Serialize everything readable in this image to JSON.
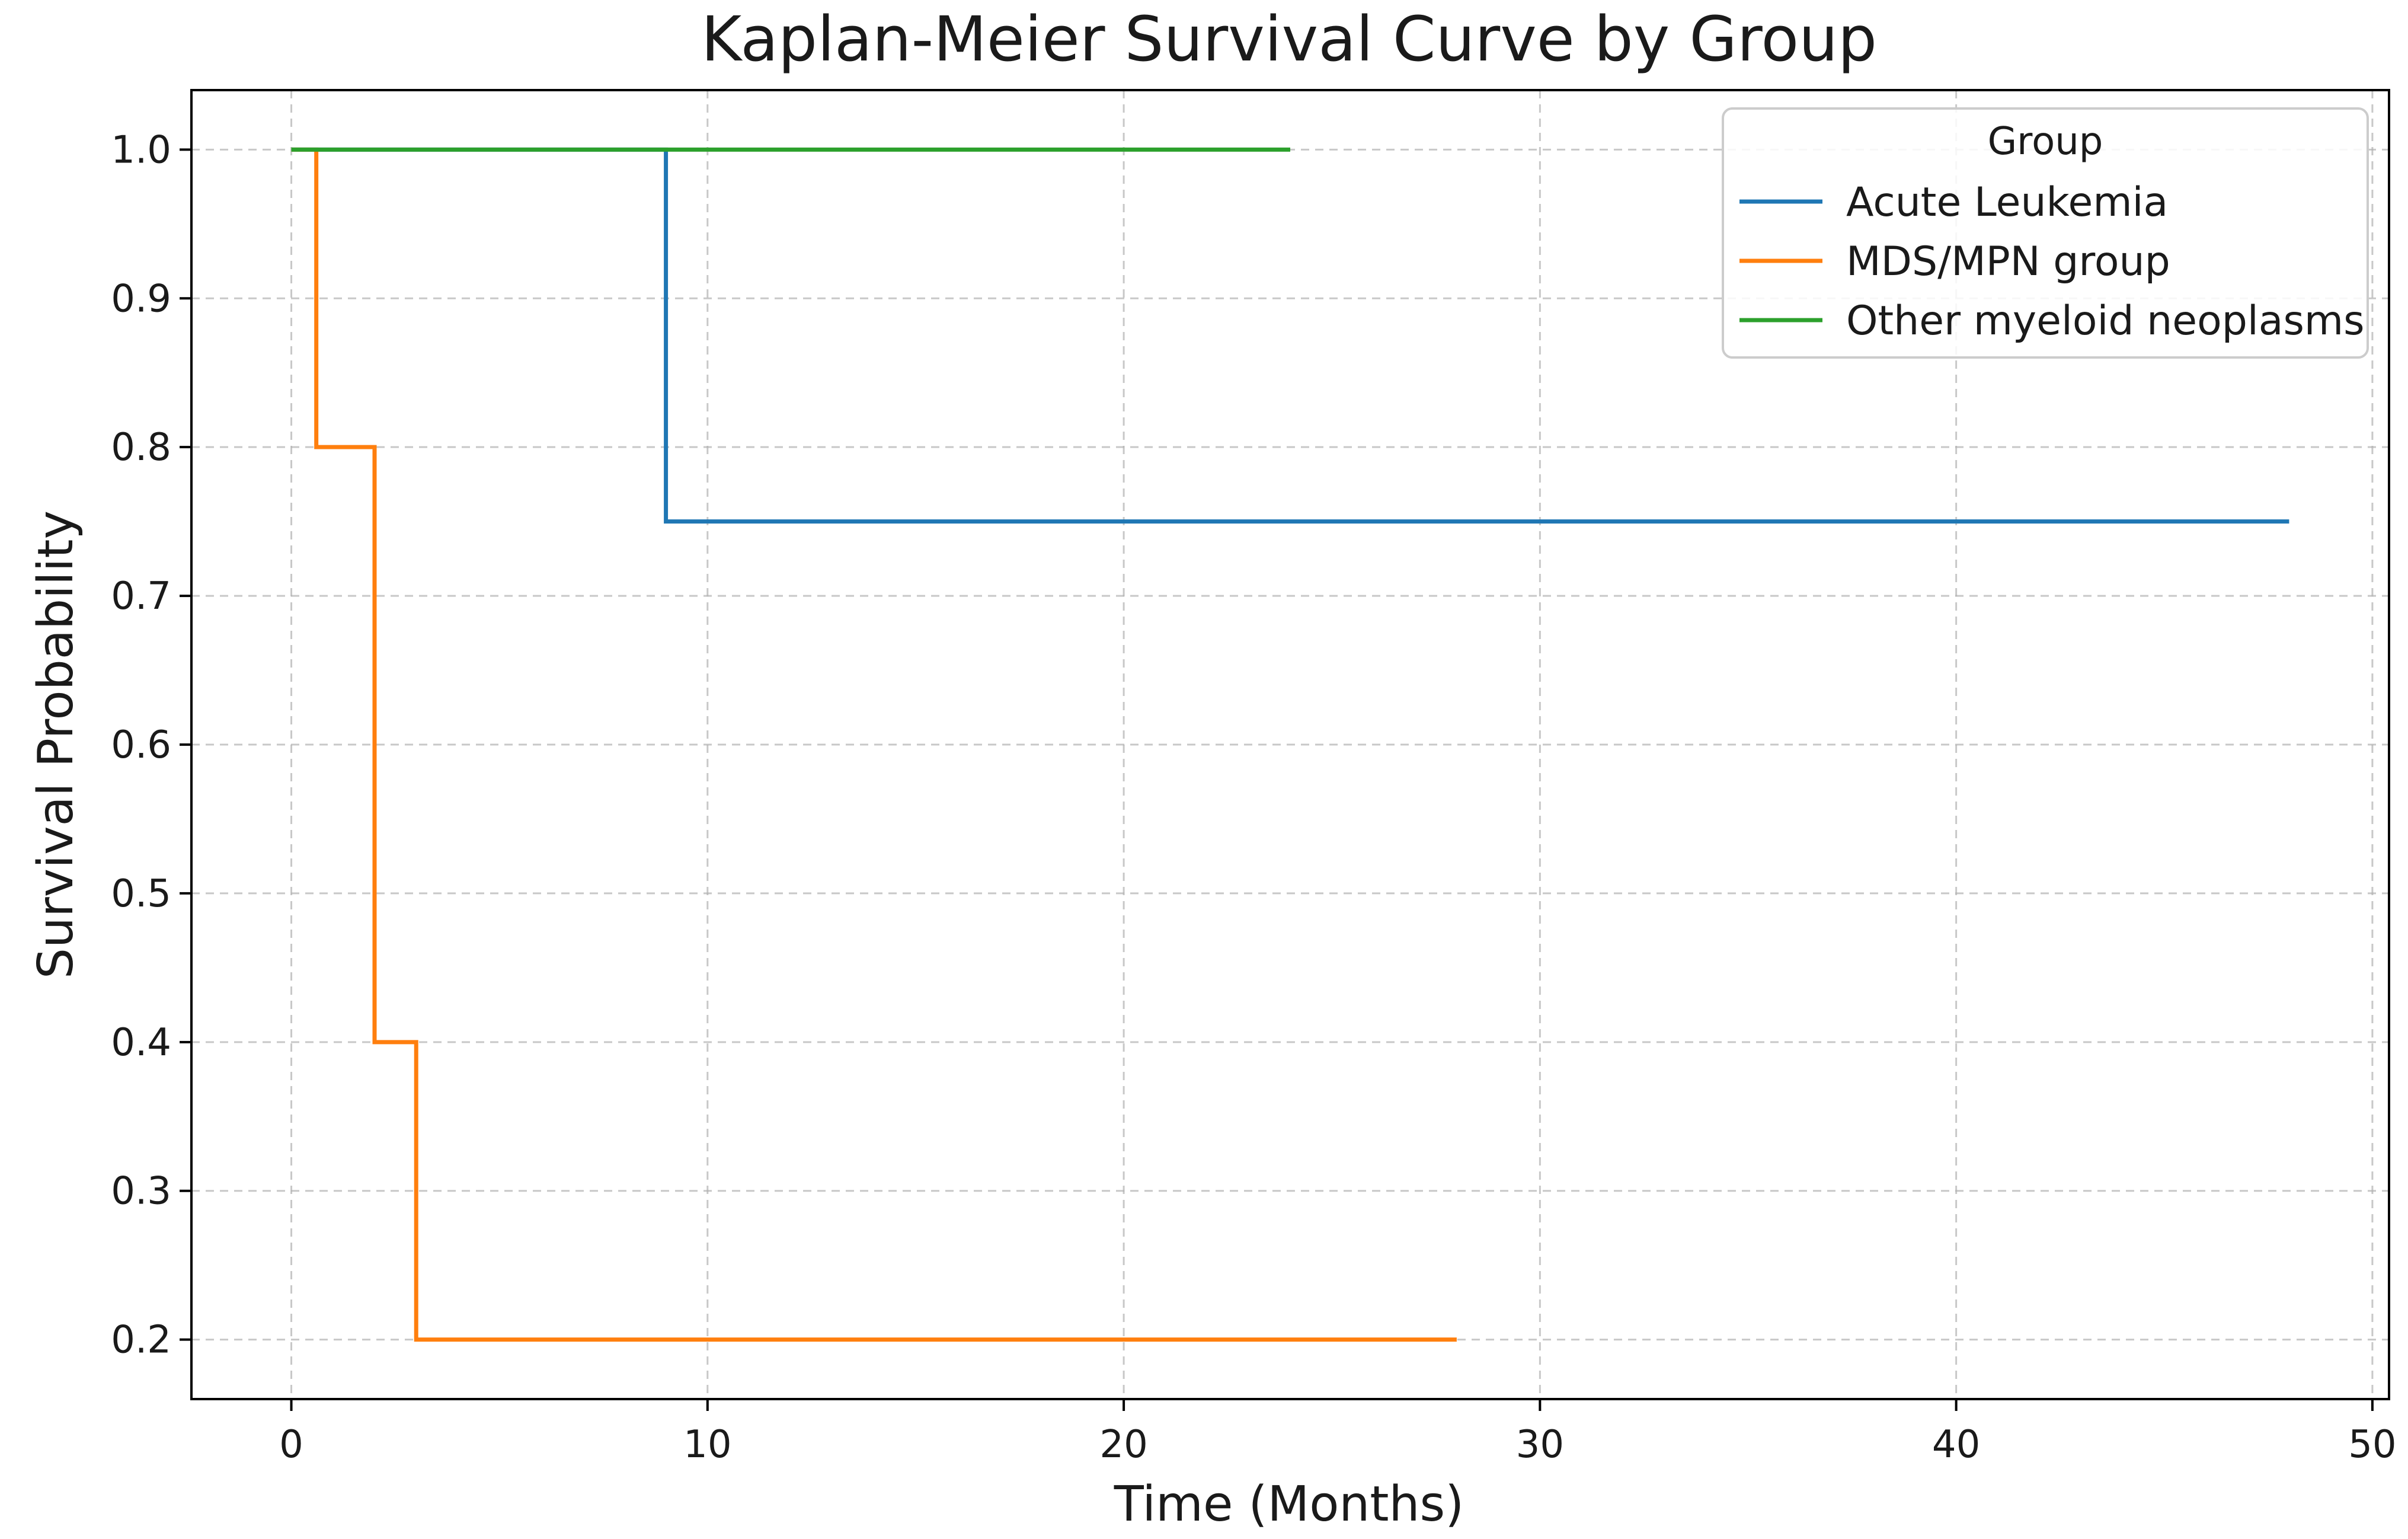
{
  "chart_data": {
    "type": "line",
    "step": "post",
    "title": "Kaplan-Meier Survival Curve by Group",
    "xlabel": "Time (Months)",
    "ylabel": "Survival Probability",
    "xlim": [
      -2.4,
      50.4
    ],
    "ylim": [
      0.16,
      1.04
    ],
    "xticks": [
      0,
      10,
      20,
      30,
      40,
      50
    ],
    "yticks": [
      0.2,
      0.3,
      0.4,
      0.5,
      0.6,
      0.7,
      0.8,
      0.9,
      1.0
    ],
    "xtick_labels": [
      "0",
      "10",
      "20",
      "30",
      "40",
      "50"
    ],
    "ytick_labels": [
      "0.2",
      "0.3",
      "0.4",
      "0.5",
      "0.6",
      "0.7",
      "0.8",
      "0.9",
      "1.0"
    ],
    "grid": true,
    "legend": {
      "title": "Group",
      "placement": "top-right"
    },
    "series": [
      {
        "name": "Acute Leukemia",
        "color": "#1f77b4",
        "x": [
          0,
          9,
          48
        ],
        "y": [
          1.0,
          0.75,
          0.75
        ]
      },
      {
        "name": "MDS/MPN group",
        "color": "#ff7f0e",
        "x": [
          0,
          0.6,
          2,
          3,
          28
        ],
        "y": [
          1.0,
          0.8,
          0.4,
          0.2,
          0.2
        ]
      },
      {
        "name": "Other myeloid neoplasms",
        "color": "#2ca02c",
        "x": [
          0,
          24
        ],
        "y": [
          1.0,
          1.0
        ]
      }
    ]
  }
}
